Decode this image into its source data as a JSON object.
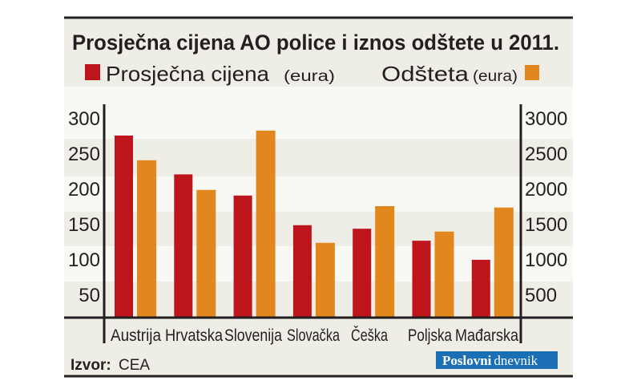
{
  "chart_data": {
    "type": "bar",
    "title": "Prosječna cijena AO police i iznos odštete u 2011.",
    "categories": [
      "Austrija",
      "Hrvatska",
      "Slovenija",
      "Slovačka",
      "Češka",
      "Poljska",
      "Mađarska"
    ],
    "series": [
      {
        "name": "Prosječna cijena",
        "unit": "(eura)",
        "axis": "left",
        "color": "#be141c",
        "values": [
          275,
          220,
          190,
          148,
          143,
          126,
          99
        ]
      },
      {
        "name": "Odšteta",
        "unit": "(eura)",
        "axis": "right",
        "color": "#e2871d",
        "values": [
          2400,
          1980,
          2820,
          1230,
          1750,
          1390,
          1730
        ]
      }
    ],
    "y_left": {
      "ticks": [
        50,
        100,
        150,
        200,
        250,
        300
      ],
      "range": [
        0,
        300
      ]
    },
    "y_right": {
      "ticks": [
        500,
        1000,
        1500,
        2000,
        2500,
        3000
      ],
      "range": [
        0,
        3000
      ]
    },
    "legend_placement": "top",
    "grid": "alternating horizontal bands"
  },
  "source": {
    "label": "Izvor:",
    "value": "CEA"
  },
  "logo": {
    "text_bold": "Poslovni",
    "text_light": "dnevnik",
    "color": "#1a6fb5"
  },
  "colors": {
    "background": "#efeee6",
    "band_light": "#f8f8f4"
  }
}
